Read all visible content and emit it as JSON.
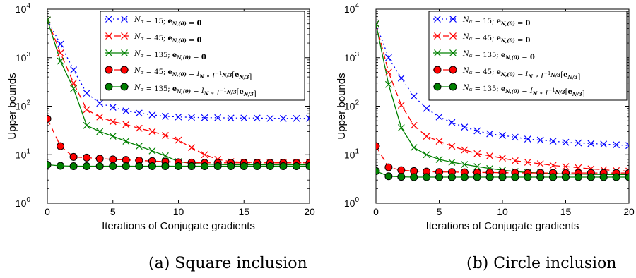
{
  "chart_data": [
    {
      "type": "line",
      "caption": "(a) Square inclusion",
      "xlabel": "Iterations of Conjugate gradients",
      "ylabel": "Upper bounds",
      "xlim": [
        0,
        20
      ],
      "ylim": [
        1,
        10000
      ],
      "yscale": "log",
      "xticks": [
        0,
        5,
        10,
        15,
        20
      ],
      "yticks": [
        1,
        10,
        100,
        1000,
        10000
      ],
      "ytick_labels": [
        {
          "base": "10",
          "exp": "0"
        },
        {
          "base": "10",
          "exp": "1"
        },
        {
          "base": "10",
          "exp": "2"
        },
        {
          "base": "10",
          "exp": "3"
        },
        {
          "base": "10",
          "exp": "4"
        }
      ],
      "legend_position": "top-right",
      "x": [
        0,
        1,
        2,
        3,
        4,
        5,
        6,
        7,
        8,
        9,
        10,
        11,
        12,
        13,
        14,
        15,
        16,
        17,
        18,
        19,
        20
      ],
      "series": [
        {
          "name": "N_α = 15; e_N,(0) = 0",
          "color": "#0000ff",
          "marker": "x",
          "line": "dotted",
          "values": [
            6000,
            1900,
            560,
            185,
            115,
            95,
            80,
            72,
            66,
            62,
            60,
            59,
            58,
            58,
            57,
            57,
            57,
            56,
            56,
            56,
            56
          ]
        },
        {
          "name": "N_α = 45; e_N,(0) = 0",
          "color": "#ff0000",
          "marker": "x",
          "line": "dashed",
          "values": [
            6000,
            1250,
            300,
            85,
            60,
            48,
            42,
            35,
            30,
            25,
            20,
            14,
            10,
            8,
            7.2,
            7,
            6.9,
            6.8,
            6.8,
            6.8,
            6.8
          ]
        },
        {
          "name": "N_α = 135; e_N,(0) = 0",
          "color": "#008000",
          "marker": "x",
          "line": "solid",
          "values": [
            6000,
            850,
            230,
            40,
            30,
            24,
            19,
            15,
            12,
            9.5,
            7.2,
            6.6,
            6.4,
            6.3,
            6.2,
            6.2,
            6.2,
            6.2,
            6.2,
            6.2,
            6.2
          ]
        },
        {
          "name": "N_α = 45; e_N,(0) = I_N ∘ I⁻¹_N/3[e_N/3]",
          "color": "#ff0000",
          "marker": "o",
          "line": "dashed",
          "values": [
            55,
            15,
            9,
            8.7,
            8.3,
            8,
            7.8,
            7.6,
            7.4,
            7.2,
            7,
            6.9,
            6.8,
            6.8,
            6.8,
            6.8,
            6.8,
            6.8,
            6.8,
            6.8,
            6.8
          ]
        },
        {
          "name": "N_α = 135; e_N,(0) = I_N ∘ I⁻¹_N/3[e_N/3]",
          "color": "#008000",
          "marker": "o",
          "line": "solid",
          "values": [
            6.2,
            5.9,
            5.8,
            5.8,
            5.8,
            5.8,
            5.8,
            5.8,
            5.8,
            5.8,
            5.8,
            5.8,
            5.8,
            5.8,
            5.8,
            5.8,
            5.8,
            5.8,
            5.8,
            5.8,
            5.8
          ]
        }
      ]
    },
    {
      "type": "line",
      "caption": "(b) Circle inclusion",
      "xlabel": "Iterations of Conjugate gradients",
      "ylabel": "Upper bounds",
      "xlim": [
        0,
        20
      ],
      "ylim": [
        1,
        10000
      ],
      "yscale": "log",
      "xticks": [
        0,
        5,
        10,
        15,
        20
      ],
      "yticks": [
        1,
        10,
        100,
        1000,
        10000
      ],
      "ytick_labels": [
        {
          "base": "10",
          "exp": "0"
        },
        {
          "base": "10",
          "exp": "1"
        },
        {
          "base": "10",
          "exp": "2"
        },
        {
          "base": "10",
          "exp": "3"
        },
        {
          "base": "10",
          "exp": "4"
        }
      ],
      "legend_position": "top-right",
      "x": [
        0,
        1,
        2,
        3,
        4,
        5,
        6,
        7,
        8,
        9,
        10,
        11,
        12,
        13,
        14,
        15,
        16,
        17,
        18,
        19,
        20
      ],
      "series": [
        {
          "name": "N_α = 15; e_N,(0) = 0",
          "color": "#0000ff",
          "marker": "x",
          "line": "dotted",
          "values": [
            5000,
            1000,
            380,
            160,
            90,
            60,
            46,
            37,
            31,
            27,
            25,
            23,
            21,
            20,
            19,
            18,
            17.5,
            17,
            16.5,
            16,
            15.5
          ]
        },
        {
          "name": "N_α = 45; e_N,(0) = 0",
          "color": "#ff0000",
          "marker": "x",
          "line": "dashed",
          "values": [
            5000,
            500,
            105,
            40,
            24,
            19,
            15,
            12.5,
            10.5,
            9.5,
            8.5,
            7.5,
            7,
            6.5,
            6,
            5.7,
            5.4,
            5.1,
            4.9,
            4.7,
            4.6
          ]
        },
        {
          "name": "N_α = 135; e_N,(0) = 0",
          "color": "#008000",
          "marker": "x",
          "line": "solid",
          "values": [
            5000,
            280,
            36,
            14,
            10,
            8,
            7,
            6.3,
            5.7,
            5.2,
            4.8,
            4.5,
            4.3,
            4.2,
            4.1,
            4.0,
            4.0,
            3.95,
            3.9,
            3.9,
            3.9
          ]
        },
        {
          "name": "N_α = 45; e_N,(0) = I_N ∘ I⁻¹_N/3[e_N/3]",
          "color": "#ff0000",
          "marker": "o",
          "line": "dashed",
          "values": [
            15,
            5.5,
            4.8,
            4.6,
            4.5,
            4.4,
            4.4,
            4.35,
            4.3,
            4.3,
            4.25,
            4.25,
            4.2,
            4.2,
            4.2,
            4.2,
            4.2,
            4.2,
            4.2,
            4.2,
            4.2
          ]
        },
        {
          "name": "N_α = 135; e_N,(0) = I_N ∘ I⁻¹_N/3[e_N/3]",
          "color": "#008000",
          "marker": "o",
          "line": "solid",
          "values": [
            4.6,
            3.6,
            3.5,
            3.45,
            3.45,
            3.45,
            3.45,
            3.45,
            3.45,
            3.45,
            3.45,
            3.45,
            3.45,
            3.45,
            3.45,
            3.45,
            3.45,
            3.45,
            3.45,
            3.45,
            3.45
          ]
        }
      ]
    }
  ]
}
